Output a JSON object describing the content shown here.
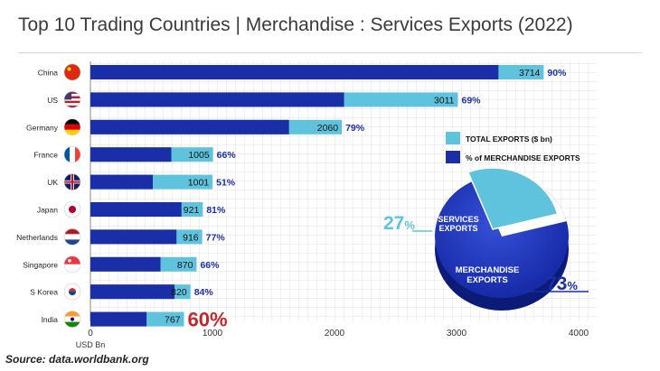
{
  "title": "Top 10 Trading Countries | Merchandise : Services Exports (2022)",
  "source": "Source: data.worldbank.org",
  "colors": {
    "merchandise": "#1a2ea8",
    "total": "#5fc3de",
    "pct_text": "#1a2ea8",
    "highlight": "#c0282b",
    "grid": "#d9d9d9"
  },
  "chart_data": {
    "type": "bar",
    "orientation": "horizontal",
    "stacked": "overlay",
    "categories": [
      "China",
      "US",
      "Germany",
      "France",
      "UK",
      "Japan",
      "Netherlands",
      "Singapore",
      "S Korea",
      "India"
    ],
    "flag_icons": [
      "flag-china-icon",
      "flag-us-icon",
      "flag-germany-icon",
      "flag-france-icon",
      "flag-uk-icon",
      "flag-japan-icon",
      "flag-netherlands-icon",
      "flag-singapore-icon",
      "flag-south-korea-icon",
      "flag-india-icon"
    ],
    "series": [
      {
        "name": "TOTAL EXPORTS ($ bn)",
        "values": [
          3714,
          3011,
          2060,
          1005,
          1001,
          921,
          916,
          870,
          820,
          767
        ]
      },
      {
        "name": "% of MERCHANDISE EXPORTS",
        "values": [
          3343,
          2078,
          1627,
          663,
          511,
          746,
          705,
          574,
          689,
          460
        ]
      }
    ],
    "percent_labels": [
      "90%",
      "69%",
      "79%",
      "66%",
      "51%",
      "81%",
      "77%",
      "66%",
      "84%",
      "60%"
    ],
    "xlabel": "USD Bn",
    "xlim": [
      0,
      4000
    ],
    "xticks": [
      "0",
      "1000",
      "2000",
      "3000",
      "4000"
    ],
    "grid": true,
    "legend_position": "right"
  },
  "pie": {
    "type": "pie",
    "slices": [
      {
        "label": "SERVICES EXPORTS",
        "value": 27,
        "display": "27%"
      },
      {
        "label": "MERCHANDISE EXPORTS",
        "value": 73,
        "display": "73%"
      }
    ]
  }
}
